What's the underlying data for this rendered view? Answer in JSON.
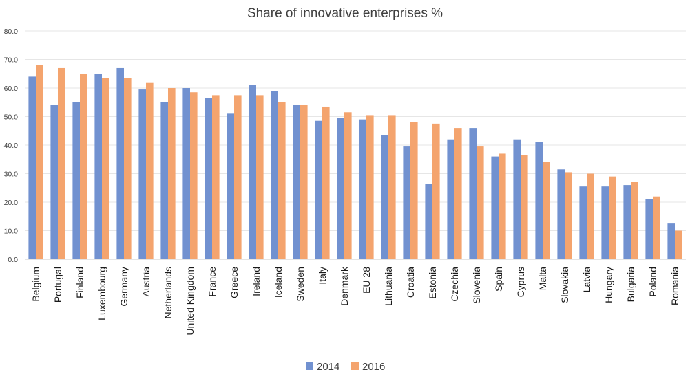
{
  "chart_data": {
    "type": "bar",
    "title": "Share of innovative enterprises %",
    "xlabel": "",
    "ylabel": "",
    "ylim": [
      0,
      80
    ],
    "yticks": [
      "0.0",
      "10.0",
      "20.0",
      "30.0",
      "40.0",
      "50.0",
      "60.0",
      "70.0",
      "80.0"
    ],
    "grid": true,
    "legend_position": "bottom",
    "categories": [
      "Belgium",
      "Portugal",
      "Finland",
      "Luxembourg",
      "Germany",
      "Austria",
      "Netherlands",
      "United Kingdom",
      "France",
      "Greece",
      "Ireland",
      "Iceland",
      "Sweden",
      "Italy",
      "Denmark",
      "EU 28",
      "Lithuania",
      "Croatia",
      "Estonia",
      "Czechia",
      "Slovenia",
      "Spain",
      "Cyprus",
      "Malta",
      "Slovakia",
      "Latvia",
      "Hungary",
      "Bulgaria",
      "Poland",
      "Romania"
    ],
    "series": [
      {
        "name": "2014",
        "color": "#7191d0",
        "values": [
          64.0,
          54.0,
          55.0,
          65.0,
          67.0,
          59.5,
          55.0,
          60.0,
          56.5,
          51.0,
          61.0,
          59.0,
          54.0,
          48.5,
          49.5,
          49.0,
          43.5,
          39.5,
          26.5,
          42.0,
          46.0,
          36.0,
          42.0,
          41.0,
          31.5,
          25.5,
          25.5,
          26.0,
          21.0,
          12.5
        ]
      },
      {
        "name": "2016",
        "color": "#f4a46e",
        "values": [
          68.0,
          67.0,
          65.0,
          63.5,
          63.5,
          62.0,
          60.0,
          58.5,
          57.5,
          57.5,
          57.5,
          55.0,
          54.0,
          53.5,
          51.5,
          50.5,
          50.5,
          48.0,
          47.5,
          46.0,
          39.5,
          37.0,
          36.5,
          34.0,
          30.5,
          30.0,
          29.0,
          27.0,
          22.0,
          10.0
        ]
      }
    ]
  }
}
